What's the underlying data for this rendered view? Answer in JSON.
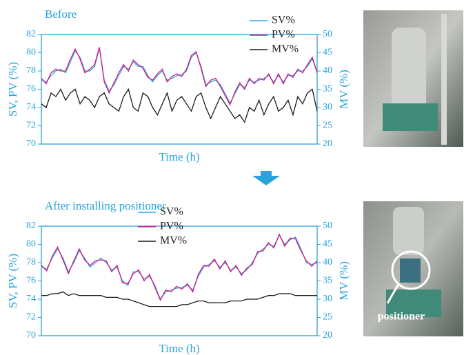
{
  "chart_data": [
    {
      "type": "line",
      "title": "Before",
      "xlabel": "Time (h)",
      "ylabel": "SV, PV (%)",
      "y2label": "MV (%)",
      "ylim": [
        70,
        82
      ],
      "yticks": [
        70,
        72,
        74,
        76,
        78,
        80,
        82
      ],
      "y2lim": [
        20,
        50
      ],
      "y2ticks": [
        20,
        25,
        30,
        35,
        40,
        45,
        50
      ],
      "legend": "upper right",
      "grid": false,
      "series": [
        {
          "name": "SV%",
          "color": "#29abe2",
          "values": [
            77,
            76.8,
            77.5,
            78,
            78.2,
            77.8,
            79,
            80.2,
            79.5,
            78,
            78,
            78.5,
            80.5,
            77,
            75.8,
            76.5,
            77.5,
            78.5,
            78.2,
            79,
            78.5,
            78.5,
            77.5,
            76.8,
            77.5,
            78,
            77,
            77.2,
            77.5,
            77.6,
            78,
            79.5,
            80,
            78.5,
            76.5,
            76.8,
            77,
            76.5,
            75.5,
            74.5,
            75.5,
            76.5,
            76.2,
            77,
            76.8,
            77,
            77.2,
            77.5,
            76.8,
            77.5,
            76.8,
            77.5,
            77.5,
            78,
            78,
            78.5,
            79.3,
            78
          ]
        },
        {
          "name": "PV%",
          "color": "#d6137f",
          "values": [
            77.2,
            76.6,
            77.8,
            78.2,
            78,
            78,
            79.3,
            80.4,
            79.3,
            77.8,
            78.2,
            78.7,
            80.6,
            76.8,
            75.6,
            76.7,
            77.8,
            78.7,
            78,
            79.2,
            78.7,
            78.3,
            77.3,
            77,
            77.7,
            78.2,
            76.8,
            77.4,
            77.7,
            77.4,
            78.2,
            79.7,
            80.1,
            78.3,
            76.3,
            77,
            77.2,
            76.3,
            75.3,
            74.3,
            75.7,
            76.7,
            76,
            77.2,
            76.6,
            77.2,
            77,
            77.7,
            76.6,
            77.7,
            76.6,
            77.7,
            77.3,
            78.2,
            77.8,
            78.7,
            79.5,
            77.8
          ]
        },
        {
          "name": "MV%",
          "color": "#1a1a1a",
          "axis": "y2",
          "values": [
            31,
            30,
            34,
            33,
            35,
            32,
            34,
            35,
            31,
            33,
            32,
            30,
            33,
            34,
            31,
            30,
            29,
            33,
            35,
            30,
            29,
            34,
            33,
            30,
            28,
            31,
            34,
            29,
            32,
            33,
            31,
            29,
            33,
            34,
            30,
            27,
            30,
            33,
            31,
            29,
            27,
            28,
            26,
            30,
            29,
            32,
            28,
            31,
            33,
            29,
            30,
            32,
            28,
            33,
            31,
            34,
            35,
            29
          ]
        }
      ]
    },
    {
      "type": "line",
      "title": "After installing positioner",
      "xlabel": "Time (h)",
      "ylabel": "SV, PV (%)",
      "y2label": "MV (%)",
      "ylim": [
        70,
        82
      ],
      "yticks": [
        70,
        72,
        74,
        76,
        78,
        80,
        82
      ],
      "y2lim": [
        20,
        50
      ],
      "y2ticks": [
        20,
        25,
        30,
        35,
        40,
        45,
        50
      ],
      "legend": "upper center",
      "grid": false,
      "series": [
        {
          "name": "SV%",
          "color": "#29abe2",
          "values": [
            77.5,
            77.3,
            78.5,
            79.5,
            78.5,
            77,
            78,
            79.3,
            78.5,
            77.5,
            78,
            78.5,
            78,
            77.2,
            77.5,
            76,
            75.5,
            77,
            77,
            76.2,
            76.5,
            75.5,
            74,
            74.8,
            75,
            75.2,
            75.3,
            75.5,
            75,
            76.5,
            77.5,
            77.8,
            78.2,
            77.5,
            78,
            77.2,
            77.5,
            76.8,
            77.2,
            78,
            79,
            79.5,
            80,
            79.8,
            81,
            80,
            80.5,
            80.8,
            79.5,
            78,
            77.8,
            78
          ]
        },
        {
          "name": "PV%",
          "color": "#d6137f",
          "values": [
            77.7,
            77.1,
            78.7,
            79.7,
            78.3,
            76.8,
            78.2,
            79.5,
            78.3,
            77.7,
            78.2,
            78.3,
            78.2,
            77,
            77.7,
            75.8,
            75.7,
            76.8,
            77.2,
            76,
            76.7,
            75.3,
            73.9,
            75,
            74.8,
            75.4,
            75.1,
            75.7,
            74.8,
            76.7,
            77.7,
            77.6,
            78.4,
            77.3,
            78.2,
            77,
            77.7,
            76.6,
            77.4,
            77.8,
            79.2,
            79.3,
            80.2,
            79.6,
            81.1,
            79.8,
            80.7,
            80.6,
            79.3,
            78.2,
            77.6,
            78.2
          ]
        },
        {
          "name": "MV%",
          "color": "#1a1a1a",
          "axis": "y2",
          "values": [
            31,
            31,
            31.5,
            31.5,
            32,
            31,
            31.5,
            31,
            31,
            31,
            31,
            31,
            30.5,
            30.5,
            30.5,
            30,
            30,
            29.5,
            29,
            28.5,
            28,
            28,
            28,
            28,
            28,
            28,
            28.5,
            28.5,
            29,
            29.5,
            29.5,
            29,
            29,
            29,
            29,
            29.5,
            29.5,
            29.5,
            30,
            30,
            30,
            30.5,
            31,
            31,
            31.5,
            31.5,
            31.5,
            31,
            31,
            31,
            31,
            31
          ]
        }
      ]
    }
  ],
  "photo_label": "positioner"
}
